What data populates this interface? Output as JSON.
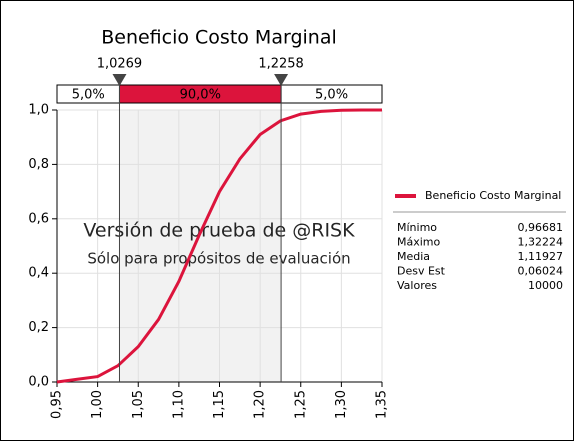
{
  "chart_data": {
    "type": "line",
    "title": "Beneficio Costo Marginal",
    "x": [
      0.95,
      0.975,
      1.0,
      1.025,
      1.05,
      1.075,
      1.1,
      1.125,
      1.15,
      1.175,
      1.2,
      1.225,
      1.25,
      1.275,
      1.3,
      1.325,
      1.35
    ],
    "values": [
      0,
      0.01,
      0.02,
      0.06,
      0.13,
      0.23,
      0.37,
      0.54,
      0.7,
      0.82,
      0.91,
      0.96,
      0.985,
      0.995,
      0.999,
      1.0,
      1.0
    ],
    "series_name": "Beneficio Costo Marginal",
    "color": "#dc143c",
    "xlim": [
      0.95,
      1.35
    ],
    "ylim": [
      0,
      1
    ],
    "xticks": [
      {
        "value": 0.95,
        "label": "0,95"
      },
      {
        "value": 1.0,
        "label": "1,00"
      },
      {
        "value": 1.05,
        "label": "1,05"
      },
      {
        "value": 1.1,
        "label": "1,10"
      },
      {
        "value": 1.15,
        "label": "1,15"
      },
      {
        "value": 1.2,
        "label": "1,20"
      },
      {
        "value": 1.25,
        "label": "1,25"
      },
      {
        "value": 1.3,
        "label": "1,30"
      },
      {
        "value": 1.35,
        "label": "1,35"
      }
    ],
    "yticks": [
      {
        "value": 0,
        "label": "0,0"
      },
      {
        "value": 0.2,
        "label": "0,2"
      },
      {
        "value": 0.4,
        "label": "0,4"
      },
      {
        "value": 0.6,
        "label": "0,6"
      },
      {
        "value": 0.8,
        "label": "0,8"
      },
      {
        "value": 1.0,
        "label": "1,0"
      }
    ],
    "grid": true,
    "delimiters": [
      {
        "value": 1.0269,
        "label": "1,0269"
      },
      {
        "value": 1.2258,
        "label": "1,2258"
      }
    ],
    "band_labels": [
      "5,0%",
      "90,0%",
      "5,0%"
    ],
    "watermark": [
      "Versión de prueba de @RISK",
      "Sólo para propósitos de evaluación"
    ],
    "stats": [
      {
        "name": "Mínimo",
        "value": "0,96681"
      },
      {
        "name": "Máximo",
        "value": "1,32224"
      },
      {
        "name": "Media",
        "value": "1,11927"
      },
      {
        "name": "Desv Est",
        "value": "0,06024"
      },
      {
        "name": "Valores",
        "value": "10000"
      }
    ]
  }
}
